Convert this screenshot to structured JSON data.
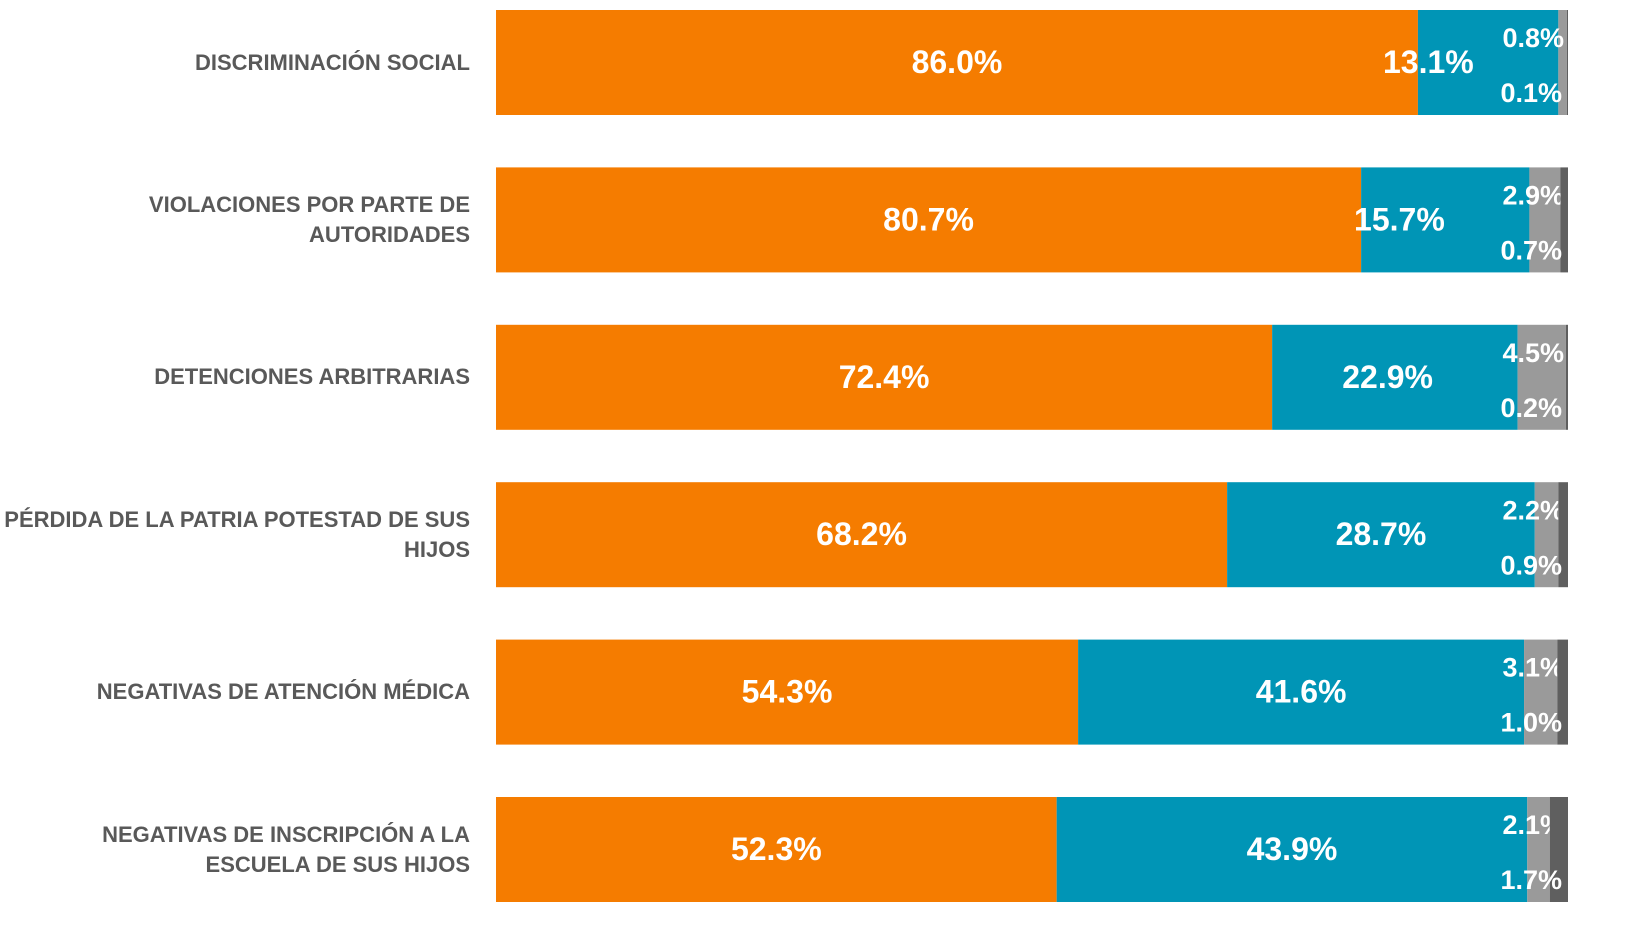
{
  "chart_data": {
    "type": "stacked_barh",
    "categories": [
      "DISCRIMINACIÓN SOCIAL",
      "VIOLACIONES POR PARTE DE AUTORIDADES",
      "DETENCIONES ARBITRARIAS",
      "PÉRDIDA DE LA PATRIA POTESTAD DE SUS HIJOS",
      "NEGATIVAS DE ATENCIÓN MÉDICA",
      "NEGATIVAS DE INSCRIPCIÓN A LA ESCUELA DE SUS HIJOS"
    ],
    "xlim": [
      0,
      100
    ],
    "series": [
      {
        "color": "#f57c00",
        "values": [
          86.0,
          80.7,
          72.4,
          68.2,
          54.3,
          52.3
        ],
        "value_labels": [
          "86.0%",
          "80.7%",
          "72.4%",
          "68.2%",
          "54.3%",
          "52.3%"
        ]
      },
      {
        "color": "#0095b6",
        "values": [
          13.1,
          15.7,
          22.9,
          28.7,
          41.6,
          43.9
        ],
        "value_labels": [
          "13.1%",
          "15.7%",
          "22.9%",
          "28.7%",
          "41.6%",
          "43.9%"
        ]
      },
      {
        "color": "#9a9a9a",
        "values": [
          0.8,
          2.9,
          4.5,
          2.2,
          3.1,
          2.1
        ],
        "value_labels": [
          "0.8%",
          "2.9%",
          "4.5%",
          "2.2%",
          "3.1%",
          "2.1%"
        ]
      },
      {
        "color": "#5f5f5f",
        "values": [
          0.1,
          0.7,
          0.2,
          0.9,
          1.0,
          1.7
        ],
        "value_labels": [
          "0.1%",
          "0.7%",
          "0.2%",
          "0.9%",
          "1.0%",
          "1.7%"
        ]
      }
    ]
  }
}
